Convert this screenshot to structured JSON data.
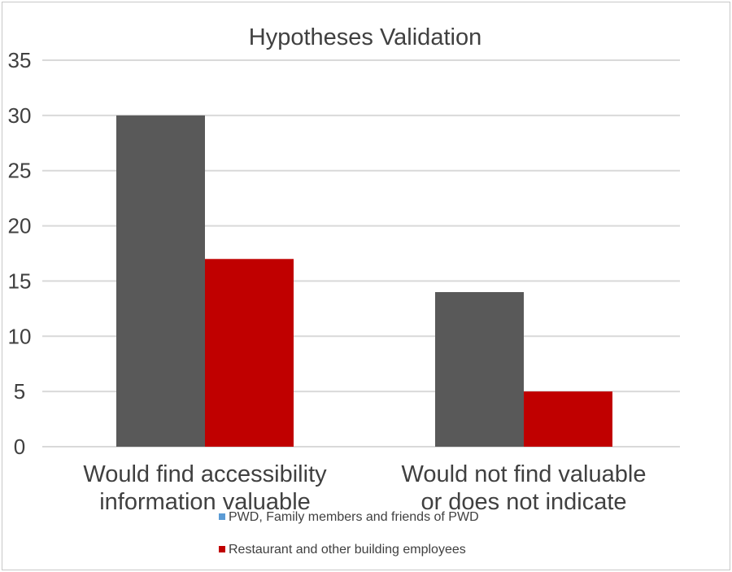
{
  "chart_data": {
    "type": "bar",
    "title": "Hypotheses Validation",
    "categories": [
      [
        "Would find accessibility",
        "information valuable"
      ],
      [
        "Would not find valuable",
        "or does not indicate"
      ]
    ],
    "series": [
      {
        "name": "PWD, Family members and friends of PWD",
        "values": [
          30,
          14
        ],
        "color": "#595959",
        "legend_color": "#5b9bd5"
      },
      {
        "name": "Restaurant and other building employees",
        "values": [
          17,
          5
        ],
        "color": "#c00000",
        "legend_color": "#c00000"
      }
    ],
    "ylim": [
      0,
      35
    ],
    "yticks": [
      0,
      5,
      10,
      15,
      20,
      25,
      30,
      35
    ],
    "grid": true,
    "legend_position": "bottom"
  }
}
